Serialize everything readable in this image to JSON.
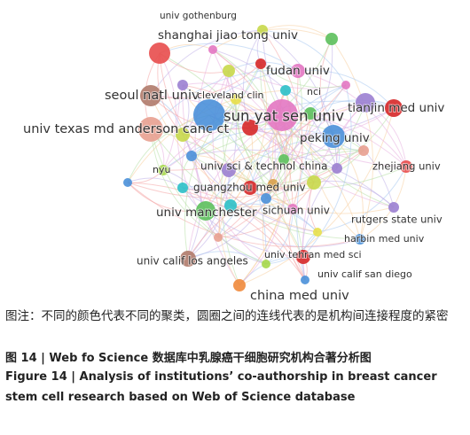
{
  "figure": {
    "labels": [
      "univ gothenburg",
      "shanghai jiao tong univ",
      "fudan univ",
      "nci",
      "seoul natl univ",
      "cleveland clin",
      "tianjin med univ",
      "sun yat sen univ",
      "univ texas md anderson canc ct",
      "peking univ",
      "nyu",
      "univ sci & technol china",
      "zhejiang univ",
      "guangzhou med univ",
      "univ manchester",
      "sichuan univ",
      "rutgers state univ",
      "harbin med univ",
      "univ calif los angeles",
      "univ tehran med sci",
      "univ calif san diego",
      "china med univ"
    ]
  },
  "caption": {
    "note": "图注：不同的颜色代表不同的聚类，圆圈之间的连线代表的是机构间连接程度的紧密",
    "title_cn": "图 14 | Web fo Science 数据库中乳腺癌干细胞研究机构合著分析图",
    "title_en": "Figure 14 | Analysis of institutions’ co-authorship in breast cancer stem cell research based on Web of Science database"
  }
}
